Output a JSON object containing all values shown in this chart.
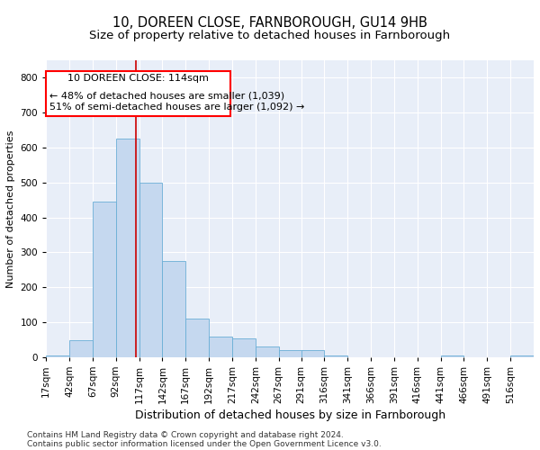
{
  "title1": "10, DOREEN CLOSE, FARNBOROUGH, GU14 9HB",
  "title2": "Size of property relative to detached houses in Farnborough",
  "xlabel": "Distribution of detached houses by size in Farnborough",
  "ylabel": "Number of detached properties",
  "footnote1": "Contains HM Land Registry data © Crown copyright and database right 2024.",
  "footnote2": "Contains public sector information licensed under the Open Government Licence v3.0.",
  "annotation_line1": "10 DOREEN CLOSE: 114sqm",
  "annotation_line2": "← 48% of detached houses are smaller (1,039)",
  "annotation_line3": "51% of semi-detached houses are larger (1,092) →",
  "bar_color": "#c5d8ef",
  "bar_edge_color": "#6aaed6",
  "marker_line_color": "#cc0000",
  "marker_value": 114,
  "bin_starts": [
    17,
    42,
    67,
    92,
    117,
    142,
    167,
    192,
    217,
    242,
    267,
    291,
    316,
    341,
    366,
    391,
    416,
    441,
    466,
    491,
    516
  ],
  "bin_width": 25,
  "bar_heights": [
    5,
    50,
    445,
    625,
    500,
    275,
    110,
    60,
    55,
    30,
    20,
    20,
    5,
    0,
    0,
    0,
    0,
    5,
    0,
    0,
    5
  ],
  "ylim": [
    0,
    850
  ],
  "yticks": [
    0,
    100,
    200,
    300,
    400,
    500,
    600,
    700,
    800
  ],
  "xlim": [
    17,
    541
  ],
  "background_color": "#ffffff",
  "plot_bg_color": "#e8eef8",
  "grid_color": "#ffffff",
  "title_fontsize": 10.5,
  "subtitle_fontsize": 9.5,
  "xlabel_fontsize": 9,
  "ylabel_fontsize": 8,
  "tick_fontsize": 7.5,
  "annotation_fontsize": 8,
  "footnote_fontsize": 6.5
}
